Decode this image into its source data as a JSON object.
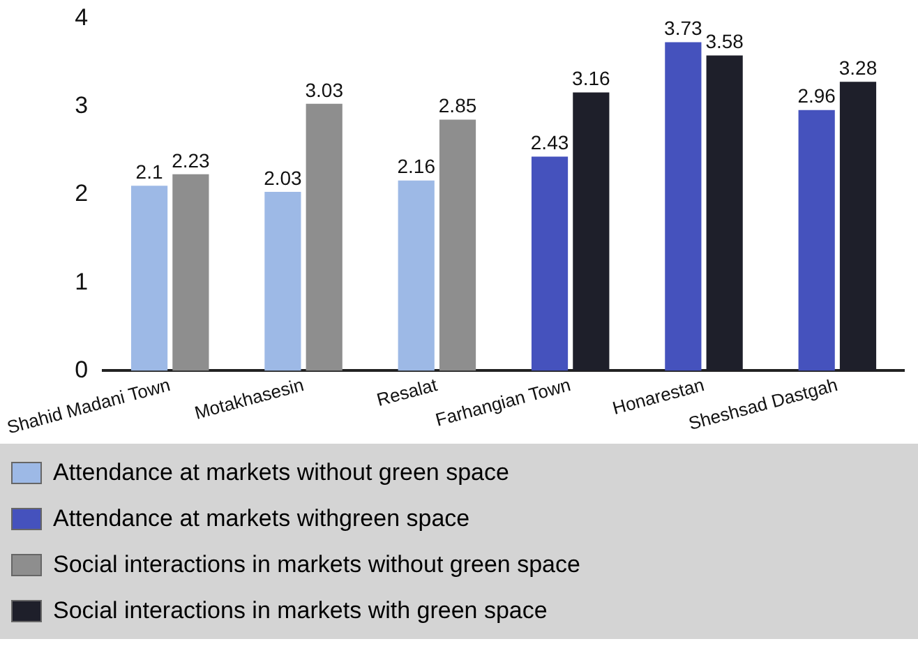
{
  "chart_data": {
    "type": "bar",
    "categories": [
      "Shahid Madani Town",
      "Motakhasesin",
      "Resalat",
      "Farhangian Town",
      "Honarestan",
      "Sheshsad Dastgah"
    ],
    "ylim": [
      0,
      4
    ],
    "yticks": [
      0,
      1,
      2,
      3,
      4
    ],
    "grid": false,
    "legend": "bottom",
    "data_labels": true,
    "series": [
      {
        "name": "Attendance at markets without green space",
        "color": "#9db9e6",
        "values": [
          2.1,
          2.03,
          2.16,
          null,
          null,
          null
        ]
      },
      {
        "name": "Attendance at markets withgreen space",
        "color": "#4552bd",
        "values": [
          null,
          null,
          null,
          2.43,
          3.73,
          2.96
        ]
      },
      {
        "name": "Social interactions in markets without green space",
        "color": "#8e8e8e",
        "values": [
          2.23,
          3.03,
          2.85,
          null,
          null,
          null
        ]
      },
      {
        "name": "Social interactions in markets with green space",
        "color": "#1e1f2a",
        "values": [
          null,
          null,
          null,
          3.16,
          3.58,
          3.28
        ]
      }
    ]
  }
}
